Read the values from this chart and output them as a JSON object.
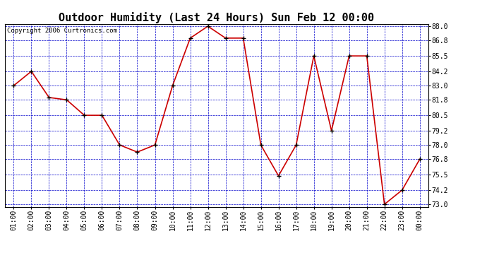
{
  "title": "Outdoor Humidity (Last 24 Hours) Sun Feb 12 00:00",
  "copyright": "Copyright 2006 Curtronics.com",
  "x_labels": [
    "01:00",
    "02:00",
    "03:00",
    "04:00",
    "05:00",
    "06:00",
    "07:00",
    "08:00",
    "09:00",
    "10:00",
    "11:00",
    "12:00",
    "13:00",
    "14:00",
    "15:00",
    "16:00",
    "17:00",
    "18:00",
    "19:00",
    "20:00",
    "21:00",
    "22:00",
    "23:00",
    "00:00"
  ],
  "x_values": [
    1,
    2,
    3,
    4,
    5,
    6,
    7,
    8,
    9,
    10,
    11,
    12,
    13,
    14,
    15,
    16,
    17,
    18,
    19,
    20,
    21,
    22,
    23,
    24
  ],
  "y_values": [
    83.0,
    84.2,
    82.0,
    81.8,
    80.5,
    80.5,
    78.0,
    77.4,
    78.0,
    83.0,
    87.0,
    88.0,
    87.0,
    87.0,
    78.0,
    75.4,
    78.0,
    85.5,
    79.2,
    85.5,
    85.5,
    73.0,
    74.2,
    76.8
  ],
  "y_min": 73.0,
  "y_max": 88.0,
  "y_ticks": [
    73.0,
    74.2,
    75.5,
    76.8,
    78.0,
    79.2,
    80.5,
    81.8,
    83.0,
    84.2,
    85.5,
    86.8,
    88.0
  ],
  "line_color": "#cc0000",
  "marker_color": "#000000",
  "bg_color": "#ffffff",
  "plot_bg_color": "#ffffff",
  "grid_color": "#0000cc",
  "title_fontsize": 11,
  "copyright_fontsize": 6.5,
  "tick_fontsize": 7
}
